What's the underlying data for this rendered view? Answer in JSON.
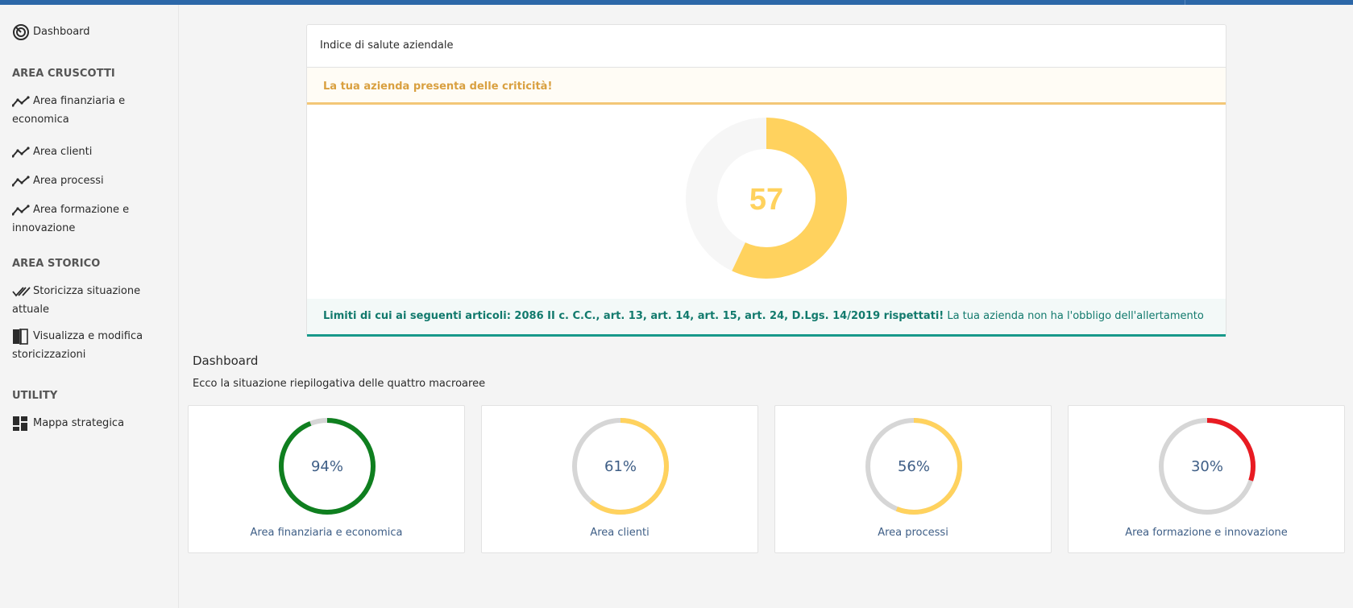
{
  "sidebar": {
    "dashboard_label": "Dashboard",
    "sections": {
      "cruscotti": "AREA CRUSCOTTI",
      "storico": "AREA STORICO",
      "utility": "UTILITY"
    },
    "items": {
      "finanziaria": "Area finanziaria e economica",
      "clienti": "Area clienti",
      "processi": "Area processi",
      "formazione": "Area formazione e innovazione",
      "storicizza": "Storicizza situazione attuale",
      "visualizza": "Visualizza e modifica storicizzazioni",
      "mappa": "Mappa strategica"
    },
    "icons": {
      "dashboard": "gauge-icon",
      "area": "trend-line-icon",
      "storicizza": "double-check-icon",
      "visualizza": "compare-icon",
      "mappa": "dashboard-grid-icon"
    }
  },
  "health": {
    "title": "Indice di salute aziendale",
    "warning": "La tua azienda presenta delle criticità!",
    "score": 57,
    "score_label": "57",
    "score_color": "#ffd25e",
    "compliance_bold": "Limiti di cui ai seguenti articoli: 2086 II c. C.C., art. 13, art. 14, art. 15, art. 24, D.Lgs. 14/2019 rispettati!",
    "compliance_text": " La tua azienda non ha l'obbligo dell'allertamento"
  },
  "dashboard": {
    "title": "Dashboard",
    "subtitle": "Ecco la situazione riepilogativa delle quattro macroaree"
  },
  "chart_data": [
    {
      "type": "pie",
      "title": "",
      "categories": [
        "score",
        "remaining"
      ],
      "values": [
        57,
        43
      ]
    },
    {
      "type": "pie",
      "kpis": [
        {
          "label": "Area finanziaria e economica",
          "value": 94,
          "display": "94%",
          "color": "#0f7f1f"
        },
        {
          "label": "Area clienti",
          "value": 61,
          "display": "61%",
          "color": "#ffd25e"
        },
        {
          "label": "Area processi",
          "value": 56,
          "display": "56%",
          "color": "#ffd25e"
        },
        {
          "label": "Area formazione e innovazione",
          "value": 30,
          "display": "30%",
          "color": "#e81b22"
        }
      ]
    }
  ],
  "colors": {
    "topbar": "#2c67a8",
    "warning": "#d9a040",
    "success": "#127a6d",
    "ring_track": "#d6d6d6",
    "kpi_text": "#3e5e86"
  }
}
